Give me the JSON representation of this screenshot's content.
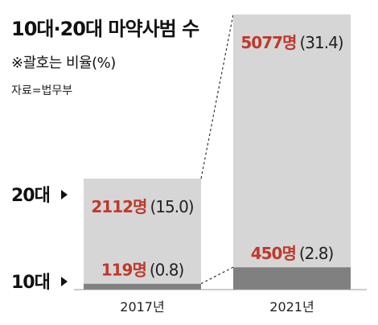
{
  "header": {
    "title": "10대·20대 마약사범 수",
    "note": "※괄호는 비율(%)",
    "source": "자료=법무부"
  },
  "chart_data": {
    "type": "bar",
    "stacked": true,
    "categories": [
      "2017년",
      "2021년"
    ],
    "series": [
      {
        "name": "10대",
        "values": [
          119,
          450
        ],
        "percent_labels": [
          "(0.8)",
          "(2.8)"
        ],
        "color": "#808080"
      },
      {
        "name": "20대",
        "values": [
          2112,
          5077
        ],
        "percent_labels": [
          "(15.0)",
          "(31.4)"
        ],
        "color": "#d6d6d7"
      }
    ],
    "value_labels": {
      "10대": [
        "119명",
        "450명"
      ],
      "20대": [
        "2112명",
        "5077명"
      ]
    },
    "label_color": "#c0392b",
    "connector_lines": "dashed",
    "legend": "left"
  }
}
